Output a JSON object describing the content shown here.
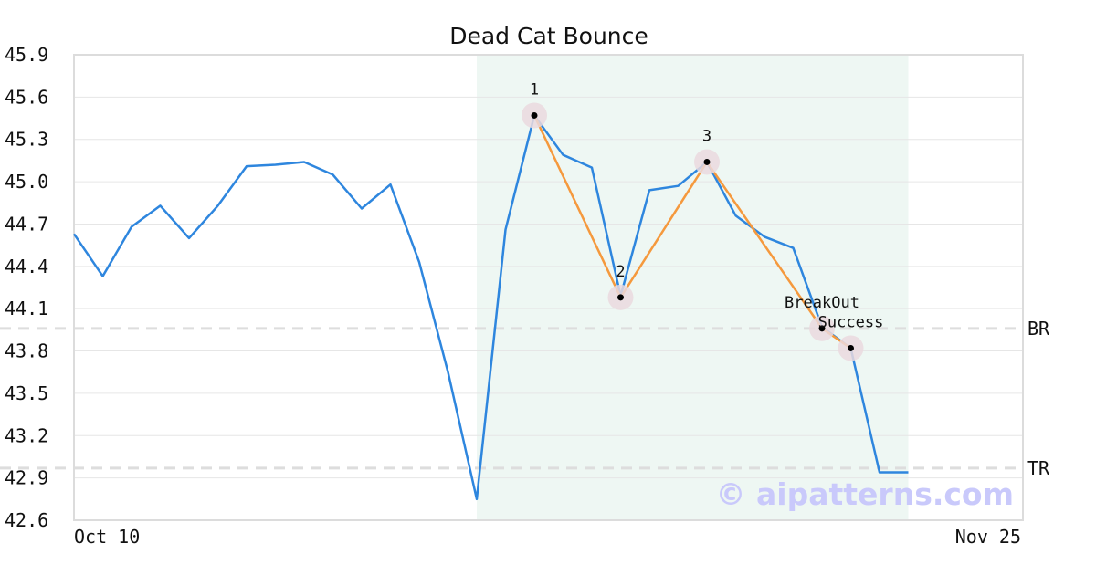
{
  "chart_data": {
    "type": "line",
    "title": "Dead Cat Bounce",
    "x_start_label": "Oct 10",
    "x_end_label": "Nov 25",
    "ylim": [
      42.6,
      45.9
    ],
    "yticks": [
      "42.6",
      "42.9",
      "43.2",
      "43.5",
      "43.8",
      "44.1",
      "44.4",
      "44.7",
      "45.0",
      "45.3",
      "45.6",
      "45.9"
    ],
    "grid": true,
    "colors": {
      "price": "#2e86de",
      "pattern": "#f5993d",
      "highlight_band": "#eef7f3",
      "levels": "#dddddd",
      "marker_halo": "#ead9de"
    },
    "series": [
      {
        "values": [
          44.63,
          44.33,
          44.68,
          44.83,
          44.6,
          44.83,
          45.11,
          45.12,
          45.14,
          45.05,
          44.81,
          44.98,
          44.43,
          43.65,
          42.75,
          44.66,
          45.47,
          45.19,
          45.1,
          44.19,
          44.94,
          44.97,
          45.14,
          44.76,
          44.61,
          44.53,
          43.97,
          43.82,
          42.94,
          42.94
        ]
      }
    ],
    "highlight": {
      "start_index": 14,
      "end_index": 29
    },
    "levels": [
      {
        "label": "BR",
        "value": 43.96
      },
      {
        "label": "TR",
        "value": 42.97
      }
    ],
    "pattern_points": [
      {
        "label": "1",
        "index": 16,
        "value": 45.47
      },
      {
        "label": "2",
        "index": 19,
        "value": 44.18
      },
      {
        "label": "3",
        "index": 22,
        "value": 45.14
      },
      {
        "label": "BreakOut",
        "index": 26,
        "value": 43.96
      },
      {
        "label": "Success",
        "index": 27,
        "value": 43.82
      }
    ],
    "watermark": "© aipatterns.com"
  }
}
